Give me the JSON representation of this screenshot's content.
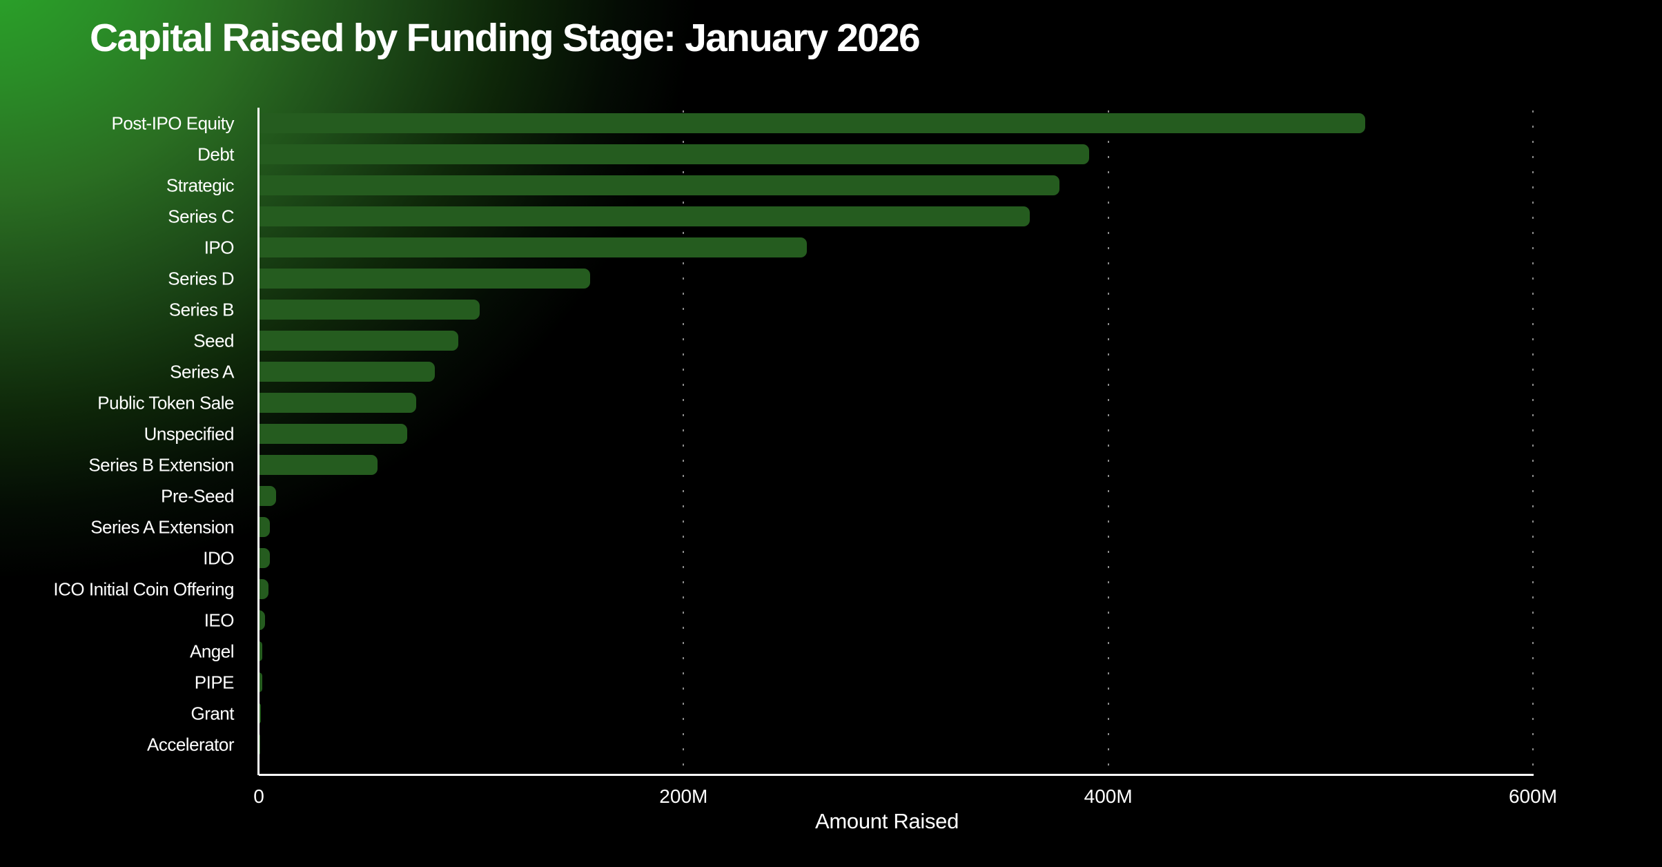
{
  "title": "Capital Raised by Funding Stage: January 2026",
  "colors": {
    "background": "#000000",
    "corner_glow_green": "#2aa82a",
    "bar_green": "#255c1f",
    "axis_white": "#ffffff",
    "gridline_dot": "rgba(255,255,255,0.55)",
    "text": "#ffffff"
  },
  "chart_data": {
    "type": "bar",
    "orientation": "horizontal",
    "title": "Capital Raised by Funding Stage: January 2026",
    "xlabel": "Amount Raised",
    "ylabel": "",
    "unit": "M (millions)",
    "xlim": [
      0,
      600
    ],
    "grid": "vertical dotted lines at 200M, 400M and 600M",
    "legend": "none",
    "x_ticks": [
      {
        "value": 0,
        "label": "0"
      },
      {
        "value": 200,
        "label": "200M"
      },
      {
        "value": 400,
        "label": "400M"
      },
      {
        "value": 600,
        "label": "600M"
      }
    ],
    "categories": [
      "Post-IPO Equity",
      "Debt",
      "Strategic",
      "Series C",
      "IPO",
      "Series D",
      "Series B",
      "Seed",
      "Series A",
      "Public Token Sale",
      "Unspecified",
      "Series B Extension",
      "Pre-Seed",
      "Series A Extension",
      "IDO",
      "ICO Initial Coin Offering",
      "IEO",
      "Angel",
      "PIPE",
      "Grant",
      "Accelerator"
    ],
    "values": [
      521,
      391,
      377,
      363,
      258,
      156,
      104,
      94,
      83,
      74,
      70,
      56,
      8,
      5.1,
      5.3,
      4.5,
      2.8,
      1.6,
      1.6,
      1.0,
      0.7
    ]
  }
}
